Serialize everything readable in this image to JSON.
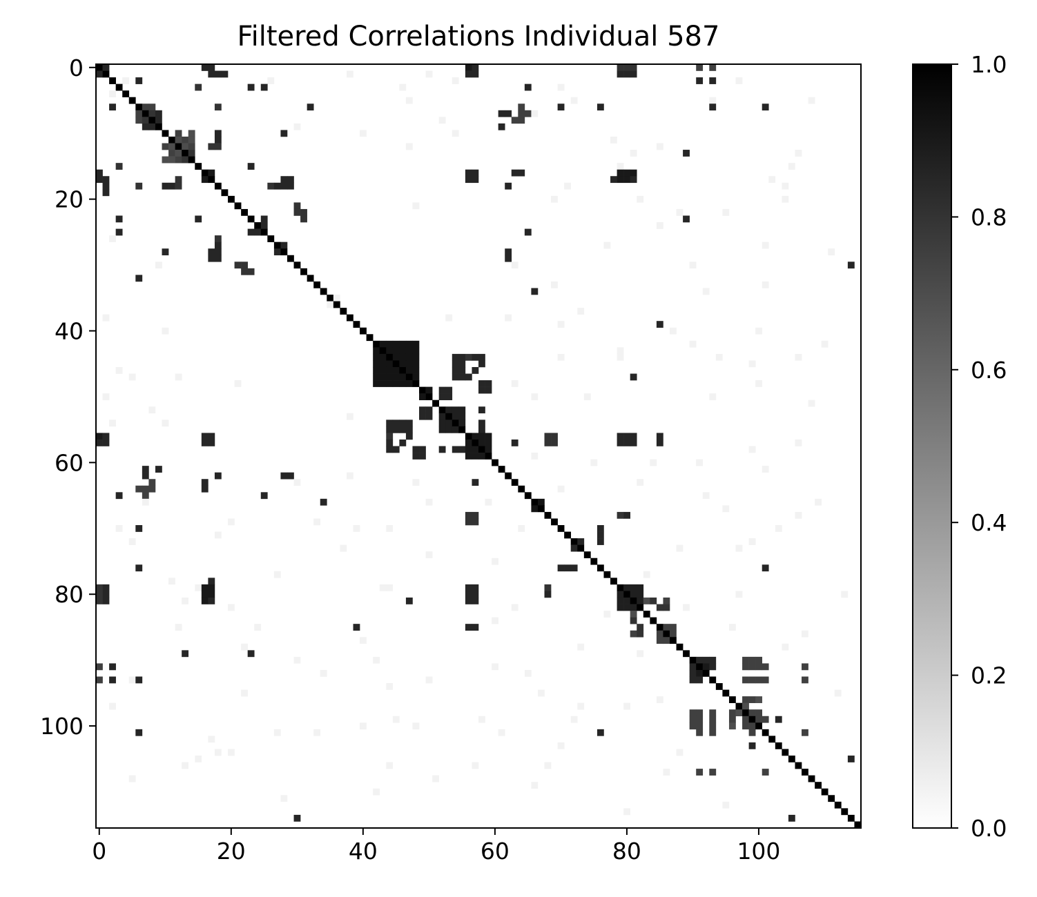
{
  "chart_data": {
    "type": "heatmap",
    "title": "Filtered Correlations Individual 587",
    "xlabel": "",
    "ylabel": "",
    "n": 116,
    "x_range": [
      0,
      115
    ],
    "y_range": [
      0,
      115
    ],
    "x_ticks": [
      0,
      20,
      40,
      60,
      80,
      100
    ],
    "y_ticks": [
      0,
      20,
      40,
      60,
      80,
      100
    ],
    "colormap": "gray_r",
    "color_range": [
      0.0,
      1.0
    ],
    "colorbar_ticks": [
      "0.0",
      "0.2",
      "0.4",
      "0.6",
      "0.8",
      "1.0"
    ],
    "diagonal_value": 1.0,
    "blocks": [
      {
        "rows": [
          42,
          48
        ],
        "cols": [
          42,
          48
        ],
        "value": 0.92
      },
      {
        "rows": [
          49,
          50
        ],
        "cols": [
          49,
          50
        ],
        "value": 0.92
      },
      {
        "rows": [
          52,
          55
        ],
        "cols": [
          52,
          55
        ],
        "value": 0.88
      },
      {
        "rows": [
          56,
          59
        ],
        "cols": [
          56,
          59
        ],
        "value": 0.9
      },
      {
        "rows": [
          66,
          67
        ],
        "cols": [
          66,
          67
        ],
        "value": 0.92
      },
      {
        "rows": [
          79,
          82
        ],
        "cols": [
          79,
          82
        ],
        "value": 0.88
      },
      {
        "rows": [
          85,
          87
        ],
        "cols": [
          85,
          87
        ],
        "value": 0.75
      },
      {
        "rows": [
          90,
          92
        ],
        "cols": [
          90,
          92
        ],
        "value": 0.85
      },
      {
        "rows": [
          98,
          100
        ],
        "cols": [
          98,
          100
        ],
        "value": 0.75
      }
    ],
    "cells": [
      [
        0,
        1,
        0.85
      ],
      [
        0,
        16,
        0.8
      ],
      [
        0,
        17,
        0.75
      ],
      [
        0,
        56,
        0.9
      ],
      [
        0,
        57,
        0.85
      ],
      [
        0,
        79,
        0.8
      ],
      [
        0,
        80,
        0.8
      ],
      [
        0,
        81,
        0.8
      ],
      [
        0,
        91,
        0.75
      ],
      [
        0,
        93,
        0.75
      ],
      [
        1,
        18,
        0.85
      ],
      [
        2,
        6,
        0.85
      ],
      [
        3,
        15,
        0.8
      ],
      [
        3,
        23,
        0.85
      ],
      [
        3,
        25,
        0.85
      ],
      [
        3,
        65,
        0.85
      ],
      [
        6,
        2,
        0.85
      ],
      [
        6,
        18,
        0.8
      ],
      [
        6,
        32,
        0.85
      ],
      [
        6,
        70,
        0.85
      ],
      [
        6,
        76,
        0.85
      ],
      [
        6,
        93,
        0.85
      ],
      [
        6,
        101,
        0.85
      ],
      [
        7,
        6,
        0.75
      ],
      [
        7,
        8,
        0.8
      ],
      [
        7,
        9,
        0.85
      ],
      [
        7,
        62,
        0.85
      ],
      [
        7,
        64,
        0.75
      ],
      [
        8,
        6,
        0.75
      ],
      [
        8,
        7,
        0.8
      ],
      [
        8,
        63,
        0.75
      ],
      [
        9,
        8,
        0.85
      ],
      [
        9,
        61,
        0.85
      ],
      [
        10,
        18,
        0.85
      ],
      [
        10,
        28,
        0.85
      ],
      [
        11,
        12,
        0.7
      ],
      [
        11,
        13,
        0.75
      ],
      [
        11,
        14,
        0.7
      ],
      [
        12,
        10,
        0.75
      ],
      [
        12,
        11,
        0.7
      ],
      [
        12,
        13,
        0.7
      ],
      [
        12,
        17,
        0.8
      ],
      [
        12,
        18,
        0.8
      ],
      [
        13,
        11,
        0.75
      ],
      [
        13,
        12,
        0.7
      ],
      [
        13,
        14,
        0.75
      ],
      [
        13,
        89,
        0.85
      ],
      [
        14,
        10,
        0.7
      ],
      [
        14,
        12,
        0.75
      ],
      [
        14,
        13,
        0.8
      ],
      [
        15,
        3,
        0.8
      ],
      [
        15,
        23,
        0.85
      ],
      [
        16,
        0,
        0.85
      ],
      [
        16,
        17,
        0.9
      ],
      [
        16,
        56,
        0.85
      ],
      [
        16,
        57,
        0.85
      ],
      [
        16,
        64,
        0.85
      ],
      [
        16,
        79,
        0.9
      ],
      [
        16,
        80,
        0.9
      ],
      [
        16,
        81,
        0.9
      ],
      [
        17,
        0,
        0.85
      ],
      [
        17,
        1,
        0.85
      ],
      [
        17,
        16,
        0.9
      ],
      [
        17,
        28,
        0.85
      ],
      [
        17,
        56,
        0.85
      ],
      [
        17,
        57,
        0.85
      ],
      [
        17,
        79,
        0.9
      ],
      [
        17,
        80,
        0.9
      ],
      [
        18,
        6,
        0.8
      ],
      [
        18,
        10,
        0.85
      ],
      [
        18,
        11,
        0.85
      ],
      [
        18,
        12,
        0.8
      ],
      [
        18,
        27,
        0.85
      ],
      [
        18,
        28,
        0.85
      ],
      [
        18,
        62,
        0.85
      ],
      [
        19,
        1,
        0.85
      ],
      [
        22,
        30,
        0.8
      ],
      [
        22,
        31,
        0.8
      ],
      [
        23,
        3,
        0.85
      ],
      [
        23,
        15,
        0.85
      ],
      [
        23,
        31,
        0.8
      ],
      [
        23,
        89,
        0.85
      ],
      [
        24,
        25,
        0.85
      ],
      [
        25,
        23,
        0.85
      ],
      [
        25,
        24,
        0.85
      ],
      [
        25,
        3,
        0.85
      ],
      [
        25,
        65,
        0.85
      ],
      [
        26,
        18,
        0.8
      ],
      [
        27,
        18,
        0.8
      ],
      [
        27,
        28,
        0.85
      ],
      [
        28,
        10,
        0.85
      ],
      [
        28,
        17,
        0.85
      ],
      [
        28,
        18,
        0.8
      ],
      [
        28,
        62,
        0.85
      ],
      [
        29,
        17,
        0.85
      ],
      [
        29,
        18,
        0.85
      ],
      [
        29,
        62,
        0.85
      ],
      [
        30,
        21,
        0.8
      ],
      [
        30,
        114,
        0.85
      ],
      [
        31,
        22,
        0.8
      ],
      [
        31,
        23,
        0.8
      ],
      [
        32,
        6,
        0.85
      ],
      [
        34,
        66,
        0.85
      ],
      [
        39,
        85,
        0.85
      ],
      [
        47,
        81,
        0.85
      ],
      [
        54,
        44,
        0.85
      ],
      [
        54,
        45,
        0.85
      ],
      [
        54,
        46,
        0.85
      ],
      [
        54,
        47,
        0.85
      ],
      [
        44,
        54,
        0.85
      ],
      [
        45,
        54,
        0.85
      ],
      [
        46,
        54,
        0.85
      ],
      [
        44,
        57,
        0.85
      ],
      [
        46,
        57,
        0.85
      ],
      [
        47,
        55,
        0.85
      ],
      [
        47,
        56,
        0.85
      ],
      [
        48,
        58,
        0.85
      ],
      [
        49,
        58,
        0.85
      ],
      [
        49,
        59,
        0.85
      ],
      [
        52,
        49,
        0.85
      ],
      [
        52,
        50,
        0.85
      ],
      [
        53,
        49,
        0.85
      ],
      [
        53,
        50,
        0.85
      ],
      [
        55,
        44,
        0.85
      ],
      [
        55,
        45,
        0.85
      ],
      [
        55,
        46,
        0.85
      ],
      [
        55,
        47,
        0.85
      ],
      [
        56,
        44,
        0.8
      ],
      [
        56,
        47,
        0.8
      ],
      [
        56,
        57,
        0.9
      ],
      [
        56,
        0,
        0.85
      ],
      [
        56,
        1,
        0.85
      ],
      [
        56,
        16,
        0.85
      ],
      [
        56,
        17,
        0.85
      ],
      [
        56,
        79,
        0.85
      ],
      [
        56,
        80,
        0.85
      ],
      [
        56,
        81,
        0.85
      ],
      [
        56,
        85,
        0.8
      ],
      [
        56,
        68,
        0.8
      ],
      [
        56,
        69,
        0.8
      ],
      [
        57,
        0,
        0.85
      ],
      [
        57,
        1,
        0.85
      ],
      [
        57,
        16,
        0.85
      ],
      [
        57,
        17,
        0.85
      ],
      [
        57,
        63,
        0.85
      ],
      [
        57,
        68,
        0.8
      ],
      [
        57,
        69,
        0.8
      ],
      [
        57,
        79,
        0.85
      ],
      [
        57,
        80,
        0.85
      ],
      [
        57,
        81,
        0.85
      ],
      [
        57,
        85,
        0.8
      ],
      [
        58,
        44,
        0.85
      ],
      [
        58,
        45,
        0.85
      ],
      [
        58,
        48,
        0.85
      ],
      [
        58,
        49,
        0.85
      ],
      [
        58,
        52,
        0.85
      ],
      [
        58,
        54,
        0.85
      ],
      [
        58,
        55,
        0.85
      ],
      [
        59,
        48,
        0.85
      ],
      [
        61,
        7,
        0.85
      ],
      [
        61,
        9,
        0.85
      ],
      [
        62,
        18,
        0.85
      ],
      [
        62,
        28,
        0.85
      ],
      [
        62,
        29,
        0.85
      ],
      [
        63,
        16,
        0.85
      ],
      [
        63,
        57,
        0.85
      ],
      [
        64,
        6,
        0.75
      ],
      [
        64,
        8,
        0.75
      ],
      [
        65,
        3,
        0.85
      ],
      [
        65,
        7,
        0.75
      ],
      [
        65,
        25,
        0.85
      ],
      [
        66,
        34,
        0.85
      ],
      [
        68,
        56,
        0.8
      ],
      [
        68,
        57,
        0.8
      ],
      [
        68,
        80,
        0.85
      ],
      [
        69,
        56,
        0.8
      ],
      [
        69,
        57,
        0.8
      ],
      [
        70,
        6,
        0.85
      ],
      [
        70,
        76,
        0.85
      ],
      [
        71,
        76,
        0.85
      ],
      [
        72,
        73,
        0.85
      ],
      [
        73,
        72,
        0.85
      ],
      [
        76,
        6,
        0.85
      ],
      [
        76,
        70,
        0.85
      ],
      [
        76,
        72,
        0.85
      ],
      [
        76,
        101,
        0.85
      ],
      [
        78,
        17,
        0.85
      ],
      [
        79,
        1,
        0.85
      ],
      [
        79,
        16,
        0.85
      ],
      [
        79,
        17,
        0.85
      ],
      [
        79,
        57,
        0.85
      ],
      [
        79,
        68,
        0.8
      ],
      [
        80,
        1,
        0.85
      ],
      [
        80,
        16,
        0.85
      ],
      [
        80,
        17,
        0.85
      ],
      [
        80,
        56,
        0.85
      ],
      [
        80,
        57,
        0.85
      ],
      [
        81,
        1,
        0.85
      ],
      [
        81,
        16,
        0.85
      ],
      [
        81,
        17,
        0.85
      ],
      [
        81,
        56,
        0.85
      ],
      [
        81,
        57,
        0.85
      ],
      [
        81,
        47,
        0.7
      ],
      [
        81,
        84,
        0.8
      ],
      [
        81,
        83,
        0.7
      ],
      [
        82,
        85,
        0.8
      ],
      [
        82,
        86,
        0.8
      ],
      [
        83,
        81,
        0.7
      ],
      [
        85,
        39,
        0.85
      ],
      [
        85,
        56,
        0.85
      ],
      [
        85,
        57,
        0.85
      ],
      [
        86,
        81,
        0.75
      ],
      [
        86,
        82,
        0.75
      ],
      [
        89,
        13,
        0.85
      ],
      [
        89,
        23,
        0.85
      ],
      [
        91,
        2,
        0.85
      ],
      [
        91,
        92,
        0.9
      ],
      [
        91,
        93,
        0.85
      ],
      [
        91,
        98,
        0.75
      ],
      [
        91,
        99,
        0.75
      ],
      [
        91,
        101,
        0.75
      ],
      [
        91,
        107,
        0.75
      ],
      [
        93,
        2,
        0.85
      ],
      [
        93,
        6,
        0.85
      ],
      [
        93,
        90,
        0.85
      ],
      [
        93,
        91,
        0.85
      ],
      [
        93,
        98,
        0.75
      ],
      [
        93,
        101,
        0.75
      ],
      [
        93,
        107,
        0.75
      ],
      [
        96,
        98,
        0.75
      ],
      [
        96,
        99,
        0.75
      ],
      [
        98,
        90,
        0.75
      ],
      [
        98,
        91,
        0.75
      ],
      [
        98,
        93,
        0.75
      ],
      [
        98,
        96,
        0.7
      ],
      [
        98,
        97,
        0.7
      ],
      [
        99,
        90,
        0.75
      ],
      [
        99,
        91,
        0.75
      ],
      [
        99,
        93,
        0.75
      ],
      [
        99,
        96,
        0.7
      ],
      [
        99,
        101,
        0.75
      ],
      [
        99,
        103,
        0.8
      ],
      [
        100,
        90,
        0.75
      ],
      [
        100,
        91,
        0.75
      ],
      [
        100,
        93,
        0.75
      ],
      [
        100,
        96,
        0.7
      ],
      [
        101,
        6,
        0.85
      ],
      [
        101,
        91,
        0.75
      ],
      [
        101,
        93,
        0.75
      ],
      [
        101,
        99,
        0.75
      ],
      [
        101,
        107,
        0.75
      ],
      [
        103,
        99,
        0.85
      ],
      [
        105,
        114,
        0.85
      ],
      [
        107,
        91,
        0.75
      ],
      [
        107,
        93,
        0.75
      ],
      [
        107,
        101,
        0.75
      ],
      [
        114,
        30,
        0.85
      ],
      [
        114,
        105,
        0.85
      ]
    ],
    "faint_cells": [
      [
        2,
        4
      ],
      [
        4,
        2
      ],
      [
        1,
        50
      ],
      [
        3,
        70
      ],
      [
        5,
        72
      ],
      [
        7,
        66
      ],
      [
        9,
        30
      ],
      [
        12,
        47
      ],
      [
        15,
        79
      ],
      [
        19,
        19
      ],
      [
        20,
        104
      ],
      [
        21,
        48
      ],
      [
        24,
        85
      ],
      [
        27,
        101
      ],
      [
        33,
        69
      ],
      [
        35,
        36
      ],
      [
        38,
        1
      ],
      [
        39,
        70
      ],
      [
        42,
        90
      ],
      [
        44,
        106
      ],
      [
        46,
        3
      ],
      [
        47,
        5
      ],
      [
        48,
        100
      ],
      [
        50,
        93
      ],
      [
        52,
        8
      ],
      [
        54,
        2
      ],
      [
        57,
        106
      ],
      [
        61,
        101
      ],
      [
        63,
        82
      ],
      [
        66,
        50
      ],
      [
        69,
        20
      ],
      [
        71,
        18
      ],
      [
        73,
        97
      ],
      [
        75,
        60
      ],
      [
        78,
        11
      ],
      [
        81,
        13
      ],
      [
        83,
        77
      ],
      [
        85,
        12
      ],
      [
        88,
        73
      ],
      [
        90,
        30
      ],
      [
        92,
        65
      ],
      [
        95,
        22
      ],
      [
        97,
        80
      ],
      [
        100,
        40
      ],
      [
        102,
        17
      ],
      [
        104,
        88
      ],
      [
        106,
        68
      ],
      [
        108,
        5
      ],
      [
        110,
        42
      ],
      [
        112,
        95
      ],
      [
        2,
        97
      ],
      [
        5,
        93
      ],
      [
        10,
        54
      ],
      [
        13,
        106
      ],
      [
        18,
        104
      ],
      [
        22,
        88
      ],
      [
        26,
        2
      ],
      [
        30,
        63
      ],
      [
        34,
        92
      ],
      [
        37,
        73
      ],
      [
        40,
        10
      ],
      [
        43,
        79
      ],
      [
        45,
        99
      ],
      [
        48,
        63
      ],
      [
        51,
        108
      ],
      [
        53,
        38
      ],
      [
        59,
        66
      ],
      [
        62,
        38
      ],
      [
        64,
        70
      ],
      [
        67,
        95
      ],
      [
        70,
        44
      ],
      [
        72,
        99
      ],
      [
        74,
        50
      ],
      [
        77,
        27
      ],
      [
        79,
        44
      ],
      [
        82,
        20
      ],
      [
        84,
        60
      ],
      [
        87,
        40
      ],
      [
        89,
        82
      ],
      [
        91,
        60
      ],
      [
        94,
        44
      ],
      [
        96,
        85
      ],
      [
        99,
        58
      ],
      [
        101,
        33
      ],
      [
        103,
        70
      ],
      [
        105,
        15
      ],
      [
        107,
        86
      ],
      [
        109,
        66
      ],
      [
        111,
        28
      ],
      [
        113,
        80
      ]
    ]
  }
}
